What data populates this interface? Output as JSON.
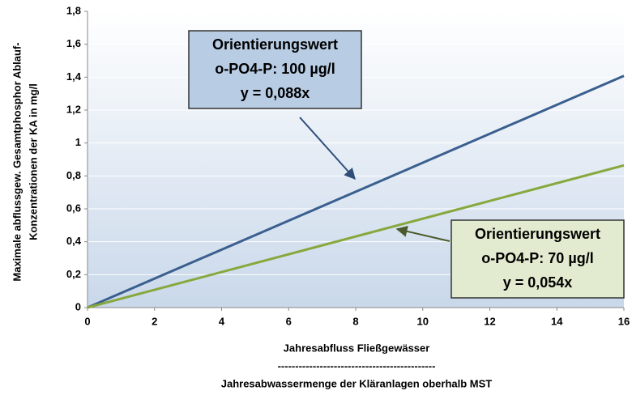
{
  "chart_data": {
    "type": "line",
    "y_label": [
      "Maximale abflussgew. Gesamtphosphor Ablauf-",
      "Konzentrationen  der KA in mg/l"
    ],
    "x_label": [
      "Jahresabfluss Fließgewässer",
      "---------------------------------------------",
      "Jahresabwassermenge der Kläranlagen  oberhalb MST"
    ],
    "x": [
      0,
      16
    ],
    "series": [
      {
        "color": "#3a5f8f",
        "values": [
          0,
          1.408
        ]
      },
      {
        "color": "#86a83c",
        "values": [
          0,
          0.864
        ]
      }
    ],
    "annotations": [
      {
        "lines": [
          "Orientierungswert",
          "o-PO4-P: 100 µg/l",
          "y = 0,088x"
        ],
        "fill": "#b8cce4"
      },
      {
        "lines": [
          "Orientierungswert",
          "o-PO4-P: 70 µg/l",
          "y = 0,054x"
        ],
        "fill": "#e2ebcf"
      }
    ],
    "xlim": [
      0,
      16
    ],
    "xticks": [
      0,
      2,
      4,
      6,
      8,
      10,
      12,
      14,
      16
    ],
    "ylim": [
      0,
      1.8
    ],
    "yticks": [
      0,
      {
        "value": 0.2,
        "label": "0,2"
      },
      {
        "value": 0.4,
        "label": "0,4"
      },
      {
        "value": 0.6,
        "label": "0,6"
      },
      {
        "value": 0.8,
        "label": "0,8"
      },
      1,
      {
        "value": 1.2,
        "label": "1,2"
      },
      {
        "value": 1.4,
        "label": "1,4"
      },
      {
        "value": 1.6,
        "label": "1,6"
      },
      {
        "value": 1.8,
        "label": "1,8"
      }
    ],
    "grid": true
  }
}
